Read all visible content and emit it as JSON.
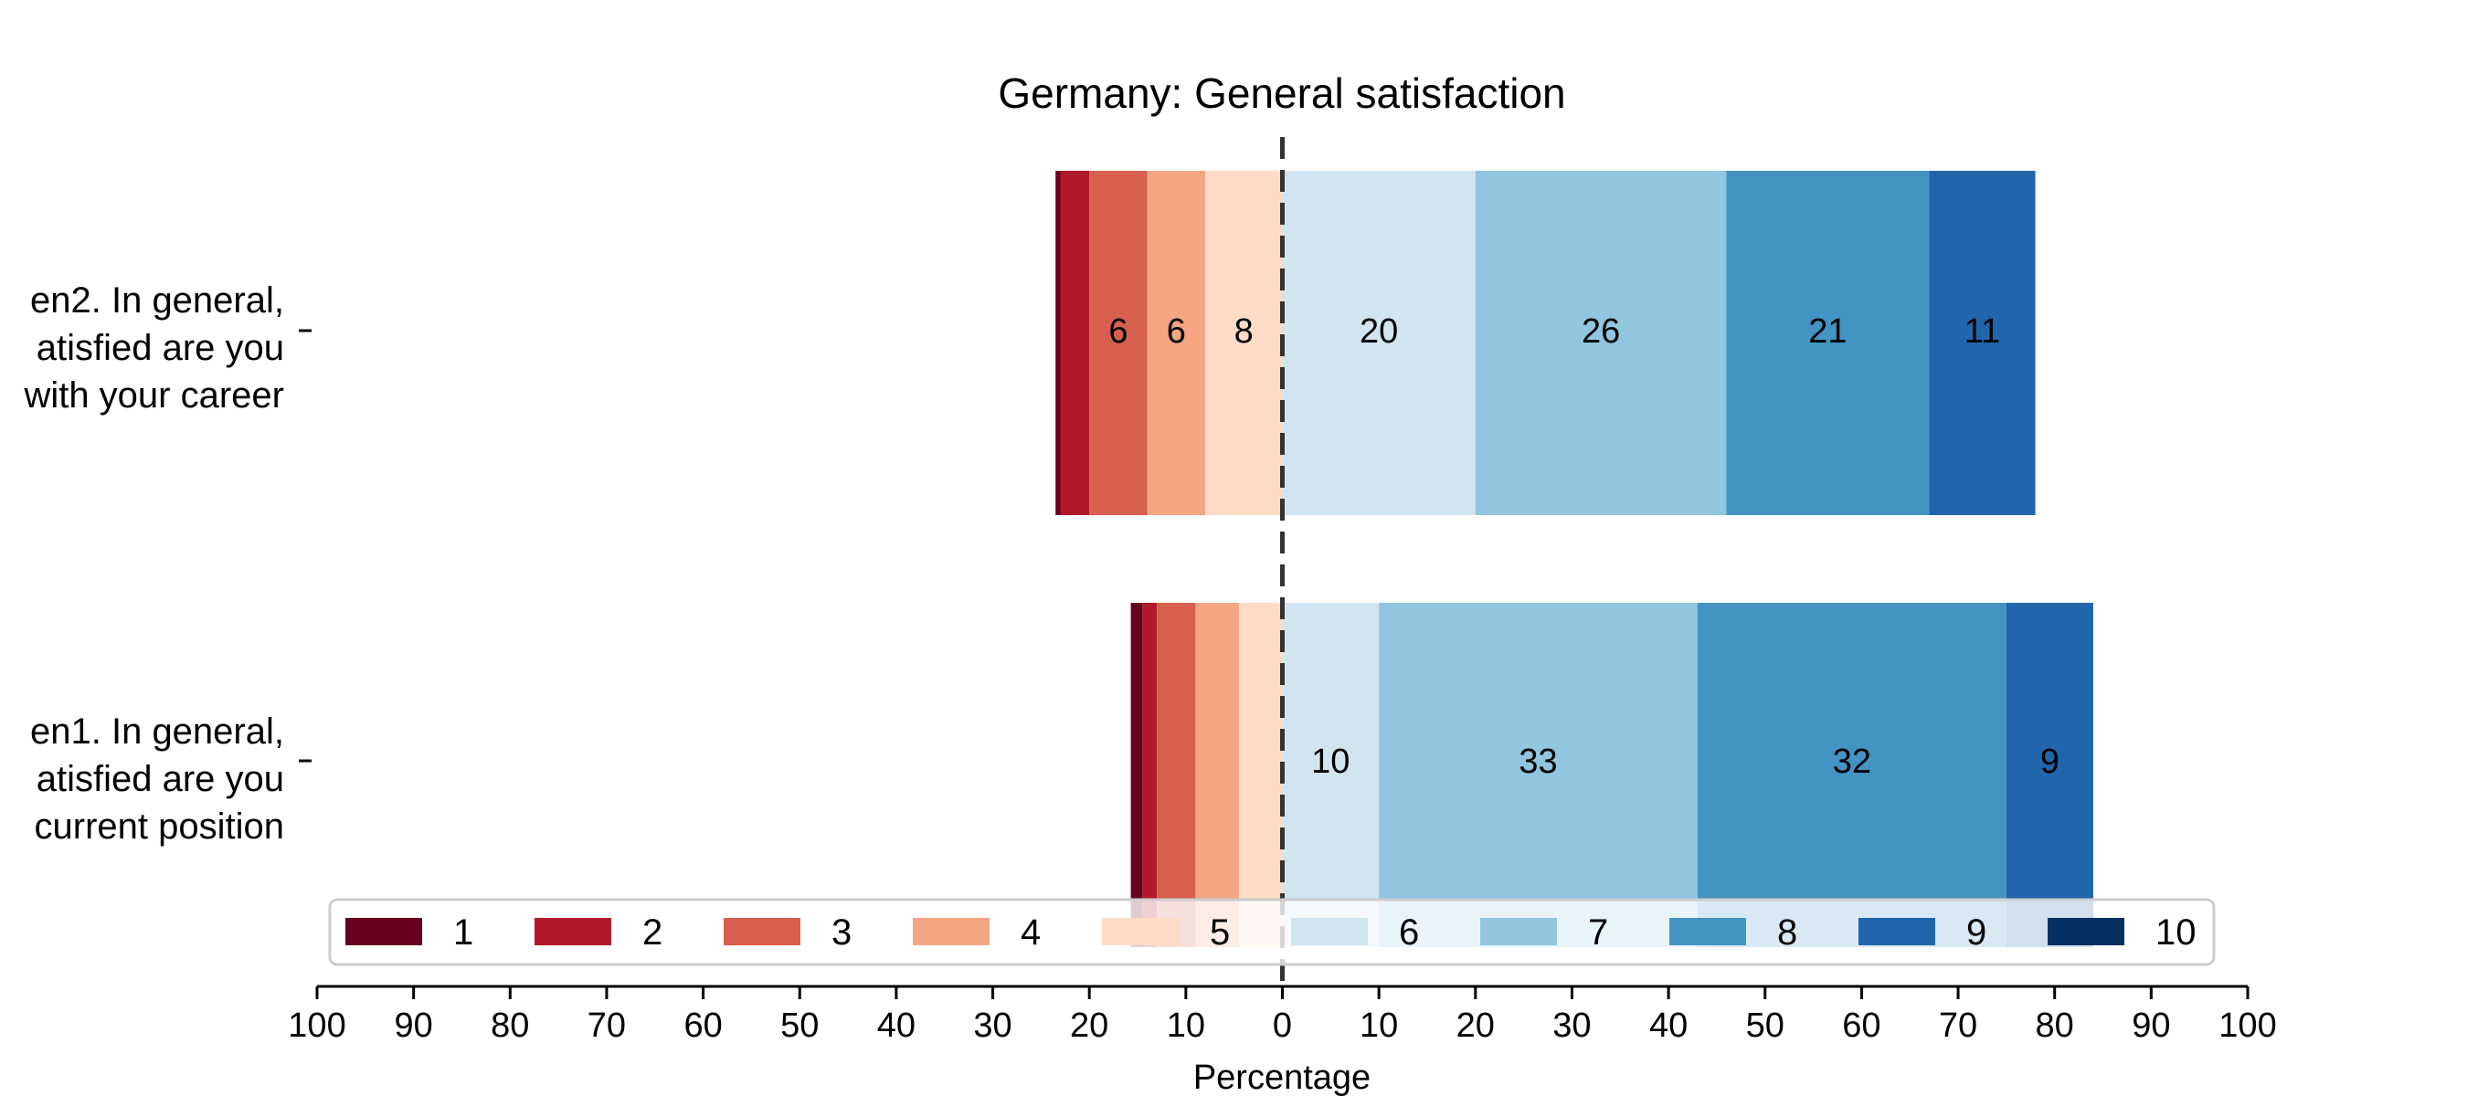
{
  "chart_data": {
    "type": "bar",
    "orientation": "horizontal",
    "stacked": "diverging",
    "title": "Germany: General satisfaction",
    "xlabel": "Percentage",
    "xlim": [
      -100,
      100
    ],
    "xticks": [
      "100",
      "90",
      "80",
      "70",
      "60",
      "50",
      "40",
      "30",
      "20",
      "10",
      "0",
      "10",
      "20",
      "30",
      "40",
      "50",
      "60",
      "70",
      "80",
      "90",
      "100"
    ],
    "center_line": "dashed at 0",
    "grid": false,
    "legend": {
      "placement": "bottom-center",
      "columns": 10
    },
    "categories": [
      "en2. In general,\natisfied are you\nwith your career",
      "en1. In general,\natisfied are you\ncurrent position"
    ],
    "series": [
      {
        "name": "1",
        "color": "#67001f",
        "values": [
          0.5,
          1.2
        ]
      },
      {
        "name": "2",
        "color": "#b2182b",
        "values": [
          3,
          1.5
        ]
      },
      {
        "name": "3",
        "color": "#d6604d",
        "values": [
          6,
          4
        ]
      },
      {
        "name": "4",
        "color": "#f4a582",
        "values": [
          6,
          4.5
        ]
      },
      {
        "name": "5",
        "color": "#fddbc7",
        "values": [
          8,
          4.5
        ]
      },
      {
        "name": "6",
        "color": "#d1e5f0",
        "values": [
          20,
          10
        ]
      },
      {
        "name": "7",
        "color": "#92c5de",
        "values": [
          26,
          33
        ]
      },
      {
        "name": "8",
        "color": "#4393c3",
        "values": [
          21,
          32
        ]
      },
      {
        "name": "9",
        "color": "#2166ac",
        "values": [
          11,
          9
        ]
      },
      {
        "name": "10",
        "color": "#053061",
        "values": [
          0,
          0
        ]
      }
    ],
    "data_labels": [
      [
        "",
        "",
        "6",
        "6",
        "8",
        "20",
        "26",
        "21",
        "11",
        ""
      ],
      [
        "",
        "",
        "",
        "",
        "",
        "10",
        "33",
        "32",
        "9",
        ""
      ]
    ],
    "neutral_split": "category 5 on the negative side, category 6+ on the positive side"
  }
}
